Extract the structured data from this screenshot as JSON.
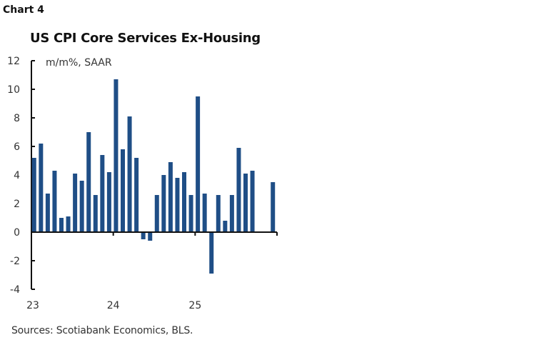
{
  "header": {
    "chart_number": "Chart 4"
  },
  "footer": {
    "sources": "Sources: Scotiabank Economics, BLS."
  },
  "chart_data": {
    "type": "bar",
    "title": "US CPI Core Services Ex-Housing",
    "ylabel": "m/m%, SAAR",
    "xlabel": "",
    "ylim": [
      -4,
      12
    ],
    "yticks": [
      -4,
      -2,
      0,
      2,
      4,
      6,
      8,
      10,
      12
    ],
    "xtick_labels": [
      "23",
      "24",
      "25"
    ],
    "bar_color": "#1f4e86",
    "grid": false,
    "categories": [
      "Jan-23",
      "Feb-23",
      "Mar-23",
      "Apr-23",
      "May-23",
      "Jun-23",
      "Jul-23",
      "Aug-23",
      "Sep-23",
      "Oct-23",
      "Nov-23",
      "Dec-23",
      "Jan-24",
      "Feb-24",
      "Mar-24",
      "Apr-24",
      "May-24",
      "Jun-24",
      "Jul-24",
      "Aug-24",
      "Sep-24",
      "Oct-24",
      "Nov-24",
      "Dec-24",
      "Jan-25",
      "Feb-25",
      "Mar-25",
      "Apr-25",
      "May-25",
      "Jun-25",
      "Jul-25",
      "Aug-25",
      "Sep-25",
      "Oct-25",
      "Nov-25",
      "Dec-25"
    ],
    "values": [
      5.2,
      6.2,
      2.7,
      4.3,
      1.0,
      1.1,
      4.1,
      3.6,
      7.0,
      2.6,
      5.4,
      4.2,
      10.7,
      5.8,
      8.1,
      5.2,
      -0.5,
      -0.6,
      2.6,
      4.0,
      4.9,
      3.8,
      4.2,
      2.6,
      9.5,
      2.7,
      -2.9,
      2.6,
      0.8,
      2.6,
      5.9,
      4.1,
      4.3,
      null,
      null,
      3.5
    ]
  }
}
